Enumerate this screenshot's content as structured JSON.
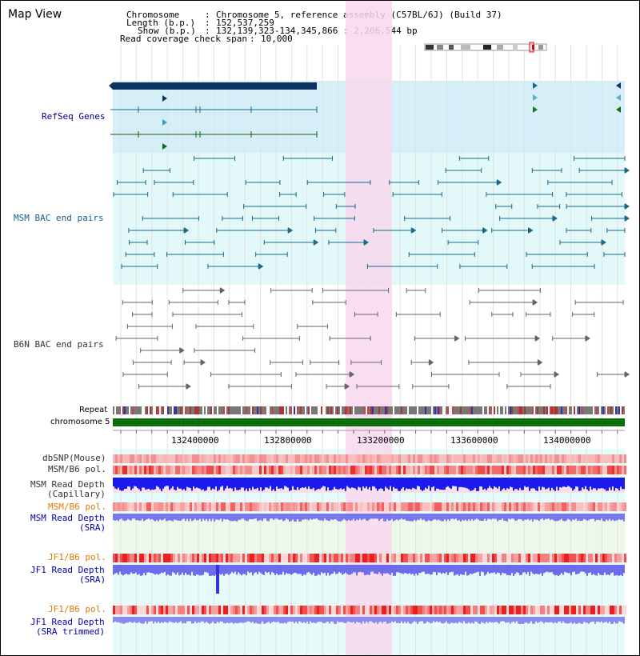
{
  "header": {
    "title": "Map View",
    "chromosome_label": "Chromosome",
    "chromosome_value": "Chromosome 5, reference assembly (C57BL/6J) (Build 37)",
    "length_label": "Length (b.p.)",
    "length_value": "152,537,259",
    "show_label": "Show (b.p.)",
    "show_value": "132,139,323-134,345,866 : 2,206,544 bp",
    "span_label": "Read coverage check span",
    "span_value": "10,000"
  },
  "tracks": {
    "refseq": "RefSeq Genes",
    "msm_bac": "MSM BAC end pairs",
    "b6n_bac": "B6N BAC end pairs",
    "repeat": "Repeat",
    "chromosome": "chromosome 5",
    "dbsnp": "dbSNP(Mouse)",
    "msm_b6_pol": "MSM/B6 pol.",
    "msm_read_depth_cap_1": "MSM Read Depth",
    "msm_read_depth_cap_2": "(Capillary)",
    "msm_b6_pol_2": "MSM/B6 pol.",
    "msm_read_depth_sra_1": "MSM Read Depth",
    "msm_read_depth_sra_2": "(SRA)",
    "jf1_b6_pol": "JF1/B6 pol.",
    "jf1_read_depth_sra_1": "JF1 Read Depth",
    "jf1_read_depth_sra_2": "(SRA)",
    "jf1_b6_pol_2": "JF1/B6 pol.",
    "jf1_read_depth_trim_1": "JF1 Read Depth",
    "jf1_read_depth_trim_2": "(SRA trimmed)"
  },
  "axis": {
    "ticks": [
      "132400000",
      "132800000",
      "133200000",
      "133600000",
      "134000000"
    ]
  },
  "colors": {
    "refseq_bg": "#d6eef8",
    "msm_bg": "#e3f8f8",
    "b6n_bg": "#ffffff",
    "highlight": "#f8d8ee",
    "gene_dark": "#0b3560",
    "msm_line": "#1a6a8a",
    "b6n_line": "#666666",
    "depth_blue": "#1a1aee",
    "chromosome_green": "#0a6e0a"
  }
}
